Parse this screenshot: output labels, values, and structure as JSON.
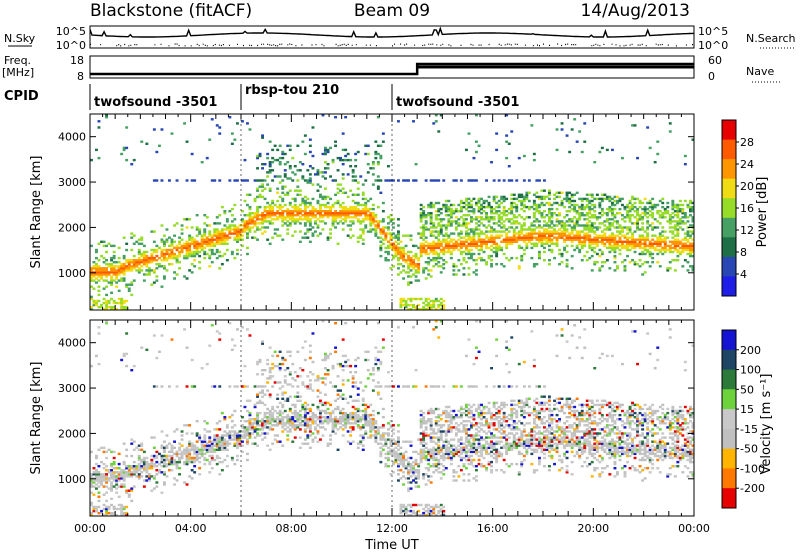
{
  "header": {
    "station": "Blackstone (fitACF)",
    "beam": "Beam 09",
    "date": "14/Aug/2013"
  },
  "noise_panel": {
    "left_label": "N.Sky",
    "left_ticks": [
      "10^5",
      "10^0"
    ],
    "right_label": "N.Search",
    "right_ticks": [
      "10^5",
      "10^0"
    ]
  },
  "freq_panel": {
    "left_label_1": "Freq.",
    "left_label_2": "[MHz]",
    "left_ticks": [
      "18",
      "8"
    ],
    "right_label": "Nave",
    "right_ticks": [
      "60",
      "0"
    ]
  },
  "cpid": {
    "label": "CPID",
    "segments": [
      {
        "name": "twofsound -3501",
        "start_hour": 0,
        "end_hour": 6
      },
      {
        "name": "rbsp-tou 210",
        "start_hour": 6,
        "end_hour": 12
      },
      {
        "name": "twofsound -3501",
        "start_hour": 12,
        "end_hour": 24
      }
    ]
  },
  "colors": {
    "power_scale": [
      "#1e1ee6",
      "#2846b4",
      "#1e6e46",
      "#46a064",
      "#96dc28",
      "#f0dc14",
      "#ff9600",
      "#ff5a00",
      "#e60000"
    ],
    "velocity_scale": [
      "#1414d2",
      "#1e4664",
      "#2c7a3a",
      "#6ed23c",
      "#c8c8c8",
      "#c0c0c0",
      "#ffb400",
      "#ff7800",
      "#e60000"
    ]
  },
  "chart_data": [
    {
      "type": "heatmap",
      "name": "power",
      "ylabel": "Slant Range [km]",
      "x_hours": [
        0,
        24
      ],
      "ylim": [
        180,
        4500
      ],
      "yticks": [
        "1000",
        "2000",
        "3000",
        "4000"
      ],
      "colorbar_label": "Power [dB]",
      "colorbar_ticks": [
        "4",
        "8",
        "12",
        "16",
        "20",
        "24",
        "28"
      ],
      "colorbar_range": [
        0,
        32
      ]
    },
    {
      "type": "heatmap",
      "name": "velocity",
      "ylabel": "Slant Range [km]",
      "xlabel": "Time UT",
      "x_hours": [
        0,
        24
      ],
      "ylim": [
        180,
        4500
      ],
      "yticks": [
        "1000",
        "2000",
        "3000",
        "4000"
      ],
      "xticks": [
        "00:00",
        "04:00",
        "08:00",
        "12:00",
        "16:00",
        "20:00",
        "00:00"
      ],
      "colorbar_label": "Velocity [m s⁻¹]",
      "colorbar_ticks": [
        "200",
        "100",
        "50",
        "15",
        "-15",
        "-50",
        "-100",
        "-200"
      ]
    }
  ]
}
